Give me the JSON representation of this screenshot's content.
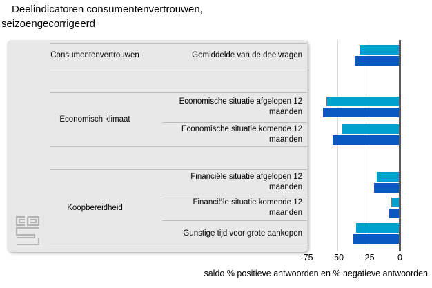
{
  "title": {
    "line1": "Deelindicatoren consumentenvertrouwen,",
    "line2": "seizoengecorrigeerd"
  },
  "axis": {
    "tick_labels": [
      "-75",
      "-50",
      "-25",
      "0"
    ],
    "tick_values": [
      -75,
      -50,
      -25,
      0
    ],
    "title": "saldo % positieve antwoorden en % negatieve antwoorden"
  },
  "colors": {
    "light_blue": "#00a1cd",
    "dark_blue": "#0a58c2",
    "panel_bg": "#e8e8e8",
    "gridline": "#d8d8d8",
    "zero_axis": "#58585a"
  },
  "chart_data": {
    "type": "bar",
    "orientation": "horizontal",
    "title": "Deelindicatoren consumentenvertrouwen, seizoengecorrigeerd",
    "xlabel": "saldo % positieve antwoorden en % negatieve antwoorden",
    "xlim": [
      -75,
      0
    ],
    "grid": true,
    "legend_visible": false,
    "series_colors": [
      {
        "key": "light_blue",
        "color": "#00a1cd"
      },
      {
        "key": "dark_blue",
        "color": "#0a58c2"
      }
    ],
    "groups": [
      {
        "group": "Consumentenvertrouwen",
        "items": [
          {
            "label": "Gemiddelde van de deelvragen",
            "light_blue": -32,
            "dark_blue": -36
          }
        ]
      },
      {
        "group": "Economisch klimaat",
        "items": [
          {
            "label": "Economische situatie afgelopen 12 maanden",
            "light_blue": -59,
            "dark_blue": -62
          },
          {
            "label": "Economische situatie komende 12 maanden",
            "light_blue": -46,
            "dark_blue": -54
          }
        ]
      },
      {
        "group": "Koopbereidheid",
        "items": [
          {
            "label": "Financiële situatie afgelopen 12 maanden",
            "light_blue": -18,
            "dark_blue": -20
          },
          {
            "label": "Financiële situatie komende 12 maanden",
            "light_blue": -6,
            "dark_blue": -8
          },
          {
            "label": "Gunstige tijd voor grote aankopen",
            "light_blue": -35,
            "dark_blue": -37
          }
        ]
      }
    ]
  }
}
